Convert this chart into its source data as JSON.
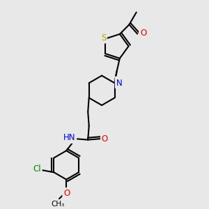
{
  "bg_color": "#e8e8e8",
  "bond_color": "#000000",
  "bond_width": 1.5,
  "atom_colors": {
    "S": "#aaaa00",
    "N": "#0000ee",
    "O": "#ee0000",
    "Cl": "#008800",
    "C": "#000000",
    "H": "#444444"
  },
  "font_size_atom": 8.5,
  "font_size_label": 7.5
}
